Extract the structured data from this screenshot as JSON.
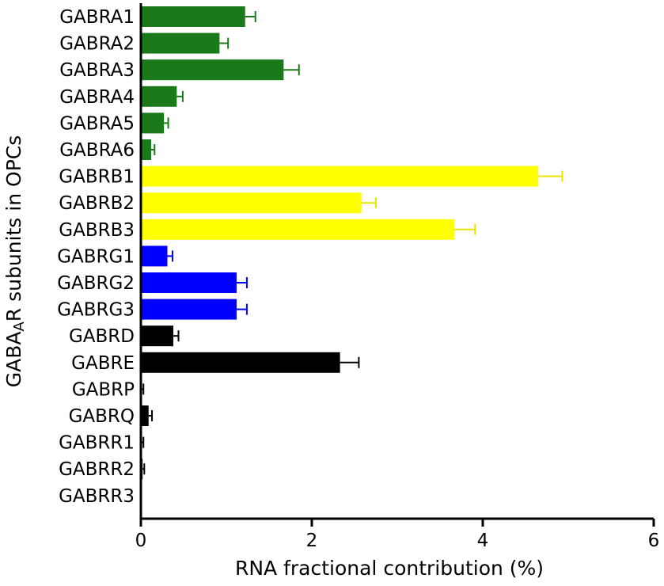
{
  "chart_data": {
    "type": "bar",
    "orientation": "horizontal",
    "ylabel_prefix": "GABA",
    "ylabel_sub": "A",
    "ylabel_suffix": "R subunits in OPCs",
    "xlabel": "RNA fractional contribution (%)",
    "xlim": [
      0,
      6
    ],
    "xticks": [
      "0",
      "2",
      "4",
      "6"
    ],
    "grid": false,
    "categories": [
      "GABRA1",
      "GABRA2",
      "GABRA3",
      "GABRA4",
      "GABRA5",
      "GABRA6",
      "GABRB1",
      "GABRB2",
      "GABRB3",
      "GABRG1",
      "GABRG2",
      "GABRG3",
      "GABRD",
      "GABRE",
      "GABRP",
      "GABRQ",
      "GABRR1",
      "GABRR2",
      "GABRR3"
    ],
    "values": [
      1.22,
      0.92,
      1.67,
      0.42,
      0.27,
      0.12,
      4.65,
      2.58,
      3.67,
      0.31,
      1.12,
      1.12,
      0.38,
      2.33,
      0.01,
      0.09,
      0.01,
      0.02,
      0.0
    ],
    "errors": [
      0.12,
      0.1,
      0.18,
      0.07,
      0.05,
      0.04,
      0.28,
      0.17,
      0.24,
      0.06,
      0.12,
      0.12,
      0.06,
      0.22,
      0.02,
      0.04,
      0.02,
      0.02,
      0.0
    ],
    "colors": [
      "#1a7a1a",
      "#1a7a1a",
      "#1a7a1a",
      "#1a7a1a",
      "#1a7a1a",
      "#1a7a1a",
      "#ffff00",
      "#ffff00",
      "#ffff00",
      "#0000ff",
      "#0000ff",
      "#0000ff",
      "#000000",
      "#000000",
      "#000000",
      "#000000",
      "#000000",
      "#000000",
      "#000000"
    ],
    "error_colors": [
      "#1a7a1a",
      "#1a7a1a",
      "#1a7a1a",
      "#1a7a1a",
      "#1a7a1a",
      "#1a7a1a",
      "#e6e600",
      "#e6e600",
      "#e6e600",
      "#0000ff",
      "#0000ff",
      "#0000ff",
      "#000000",
      "#000000",
      "#000000",
      "#000000",
      "#000000",
      "#000000",
      "#000000"
    ]
  }
}
